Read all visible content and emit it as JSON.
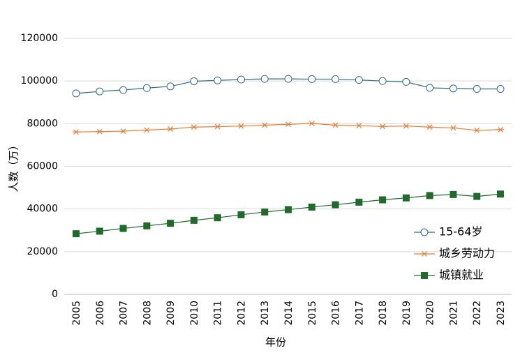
{
  "chart_data": {
    "type": "line",
    "title": "",
    "xlabel": "年份",
    "ylabel": "人数（万）",
    "ylim": [
      0,
      120000
    ],
    "yticks": [
      "0",
      "20000",
      "40000",
      "60000",
      "80000",
      "100000",
      "120000"
    ],
    "categories": [
      "2005",
      "2006",
      "2007",
      "2008",
      "2009",
      "2010",
      "2011",
      "2012",
      "2013",
      "2014",
      "2015",
      "2016",
      "2017",
      "2018",
      "2019",
      "2020",
      "2021",
      "2022",
      "2023"
    ],
    "grid": true,
    "legend_position": "bottom-right",
    "series": [
      {
        "name": "15-64岁",
        "color": "#2e6a8e",
        "marker": "circle",
        "values": [
          94200,
          95100,
          95800,
          96700,
          97500,
          99900,
          100300,
          100700,
          101000,
          101000,
          100900,
          100900,
          100500,
          100000,
          99600,
          96800,
          96500,
          96300,
          96300
        ]
      },
      {
        "name": "城乡劳动力",
        "color": "#ed7d31",
        "marker": "star",
        "values": [
          76100,
          76300,
          76500,
          77000,
          77500,
          78400,
          78600,
          78900,
          79300,
          79700,
          80100,
          79300,
          79100,
          78700,
          78900,
          78400,
          78000,
          76900,
          77200
        ]
      },
      {
        "name": "城镇就业",
        "color": "#1e6b2a",
        "marker": "square",
        "values": [
          28400,
          29600,
          30900,
          32100,
          33300,
          34700,
          35900,
          37300,
          38600,
          39700,
          40900,
          42000,
          43200,
          44300,
          45200,
          46300,
          46800,
          45900,
          47000
        ]
      }
    ]
  }
}
